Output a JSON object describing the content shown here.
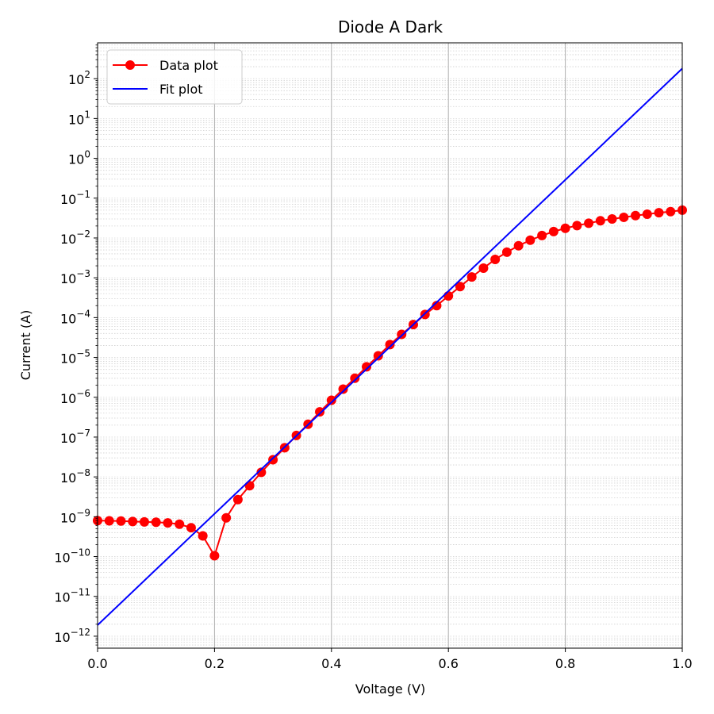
{
  "chart_data": {
    "type": "line",
    "title": "Diode A Dark",
    "xlabel": "Voltage (V)",
    "ylabel": "Current (A)",
    "xlim": [
      0.0,
      1.0
    ],
    "ylim_log10": [
      -12.3,
      2.9
    ],
    "y_scale": "log",
    "x_ticks": [
      "0.0",
      "0.2",
      "0.4",
      "0.6",
      "0.8",
      "1.0"
    ],
    "y_ticks": [
      {
        "base": "10",
        "exp": "−12",
        "p": -12
      },
      {
        "base": "10",
        "exp": "−11",
        "p": -11
      },
      {
        "base": "10",
        "exp": "−10",
        "p": -10
      },
      {
        "base": "10",
        "exp": "−9",
        "p": -9
      },
      {
        "base": "10",
        "exp": "−8",
        "p": -8
      },
      {
        "base": "10",
        "exp": "−7",
        "p": -7
      },
      {
        "base": "10",
        "exp": "−6",
        "p": -6
      },
      {
        "base": "10",
        "exp": "−5",
        "p": -5
      },
      {
        "base": "10",
        "exp": "−4",
        "p": -4
      },
      {
        "base": "10",
        "exp": "−3",
        "p": -3
      },
      {
        "base": "10",
        "exp": "−2",
        "p": -2
      },
      {
        "base": "10",
        "exp": "−1",
        "p": -1
      },
      {
        "base": "10",
        "exp": "0",
        "p": 0
      },
      {
        "base": "10",
        "exp": "1",
        "p": 1
      },
      {
        "base": "10",
        "exp": "2",
        "p": 2
      }
    ],
    "grid": "vertical major lines, dotted horizontal minor lines",
    "legend_position": "top-left",
    "series": [
      {
        "name": "Data plot",
        "color": "#ff0000",
        "marker": "circle",
        "x": [
          0.0,
          0.02,
          0.04,
          0.06,
          0.08,
          0.1,
          0.12,
          0.14,
          0.16,
          0.18,
          0.2,
          0.22,
          0.24,
          0.26,
          0.28,
          0.3,
          0.32,
          0.34,
          0.36,
          0.38,
          0.4,
          0.42,
          0.44,
          0.46,
          0.48,
          0.5,
          0.52,
          0.54,
          0.56,
          0.58,
          0.6,
          0.62,
          0.64,
          0.66,
          0.68,
          0.7,
          0.72,
          0.74,
          0.76,
          0.78,
          0.8,
          0.82,
          0.84,
          0.86,
          0.88,
          0.9,
          0.92,
          0.94,
          0.96,
          0.98,
          1.0
        ],
        "y": [
          8e-10,
          7.9e-10,
          7.8e-10,
          7.6e-10,
          7.4e-10,
          7.3e-10,
          7e-10,
          6.5e-10,
          5.3e-10,
          3.3e-10,
          1.05e-10,
          9.4e-10,
          2.7e-09,
          6e-09,
          1.3e-08,
          2.7e-08,
          5.4e-08,
          1.1e-07,
          2.1e-07,
          4.3e-07,
          8.4e-07,
          1.6e-06,
          3e-06,
          5.8e-06,
          1.1e-05,
          2.1e-05,
          3.8e-05,
          6.7e-05,
          0.00012,
          0.0002,
          0.00035,
          0.0006,
          0.00105,
          0.00175,
          0.0029,
          0.0044,
          0.0064,
          0.0088,
          0.0115,
          0.0145,
          0.0175,
          0.0205,
          0.0235,
          0.027,
          0.03,
          0.033,
          0.0365,
          0.0395,
          0.043,
          0.046,
          0.05
        ]
      },
      {
        "name": "Fit plot",
        "color": "#0000ff",
        "x": [
          0.0,
          1.0
        ],
        "y": [
          1.9e-12,
          180
        ]
      }
    ]
  }
}
